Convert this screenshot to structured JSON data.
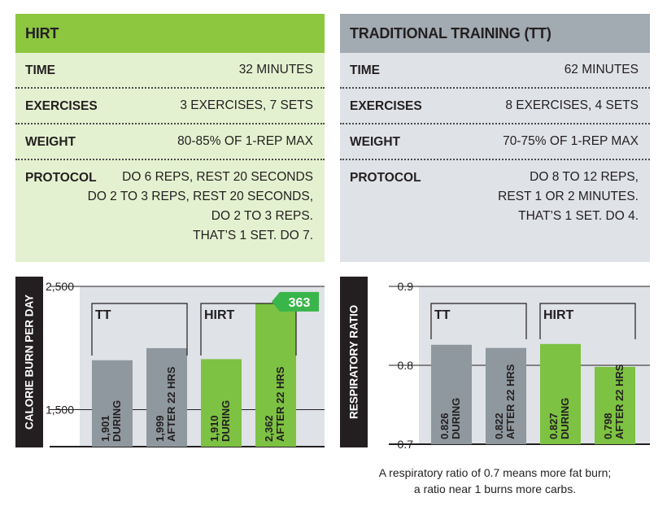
{
  "hirt_panel": {
    "title": "HIRT",
    "rows": [
      {
        "label": "TIME",
        "value": [
          "32 MINUTES"
        ]
      },
      {
        "label": "EXERCISES",
        "value": [
          "3 EXERCISES, 7 SETS"
        ]
      },
      {
        "label": "WEIGHT",
        "value": [
          "80-85% OF 1-REP MAX"
        ]
      },
      {
        "label": "PROTOCOL",
        "value": [
          "DO 6 REPS, REST 20 SECONDS",
          "DO 2 TO 3 REPS, REST 20 SECONDS,",
          "DO 2 TO 3 REPS.",
          "THAT’S 1 SET. DO 7."
        ]
      }
    ]
  },
  "tt_panel": {
    "title": "TRADITIONAL TRAINING (TT)",
    "rows": [
      {
        "label": "TIME",
        "value": [
          "62 MINUTES"
        ]
      },
      {
        "label": "EXERCISES",
        "value": [
          "8 EXERCISES, 4 SETS"
        ]
      },
      {
        "label": "WEIGHT",
        "value": [
          "70-75% OF 1-REP MAX"
        ]
      },
      {
        "label": "PROTOCOL",
        "value": [
          "DO 8 TO 12 REPS,",
          "REST 1 OR 2 MINUTES.",
          "THAT’S 1 SET. DO 4."
        ]
      }
    ]
  },
  "colors": {
    "hirt_green": "#8dc63f",
    "bar_green": "#7dc242",
    "tt_gray": "#8f989f",
    "plot_bg": "#dfe2e7",
    "badge_green": "#39b54a"
  },
  "chart_data": [
    {
      "type": "bar",
      "ylabel": "CALORIE BURN PER DAY",
      "yticks": [
        "2,500",
        "1,500"
      ],
      "ytick_values": [
        2500,
        1500
      ],
      "ylim": [
        1200,
        2500
      ],
      "groups": [
        {
          "name": "TT",
          "bars": [
            {
              "label": "DURING",
              "value": 1901,
              "value_label": "1,901"
            },
            {
              "label": "AFTER 22 HRS",
              "value": 1999,
              "value_label": "1,999"
            }
          ]
        },
        {
          "name": "HIRT",
          "bars": [
            {
              "label": "DURING",
              "value": 1910,
              "value_label": "1,910"
            },
            {
              "label": "AFTER 22 HRS",
              "value": 2362,
              "value_label": "2,362"
            }
          ]
        }
      ],
      "callout": "363"
    },
    {
      "type": "bar",
      "ylabel": "RESPIRATORY RATIO",
      "yticks": [
        "0.9",
        "0.8",
        "0.7"
      ],
      "ytick_values": [
        0.9,
        0.8,
        0.7
      ],
      "ylim": [
        0.7,
        0.9
      ],
      "groups": [
        {
          "name": "TT",
          "bars": [
            {
              "label": "DURING",
              "value": 0.826,
              "value_label": "0.826"
            },
            {
              "label": "AFTER 22 HRS",
              "value": 0.822,
              "value_label": "0.822"
            }
          ]
        },
        {
          "name": "HIRT",
          "bars": [
            {
              "label": "DURING",
              "value": 0.827,
              "value_label": "0.827"
            },
            {
              "label": "AFTER 22 HRS",
              "value": 0.798,
              "value_label": "0.798"
            }
          ]
        }
      ]
    }
  ],
  "caption": [
    "A respiratory ratio of 0.7 means more fat burn;",
    "a ratio near 1 burns more carbs."
  ]
}
